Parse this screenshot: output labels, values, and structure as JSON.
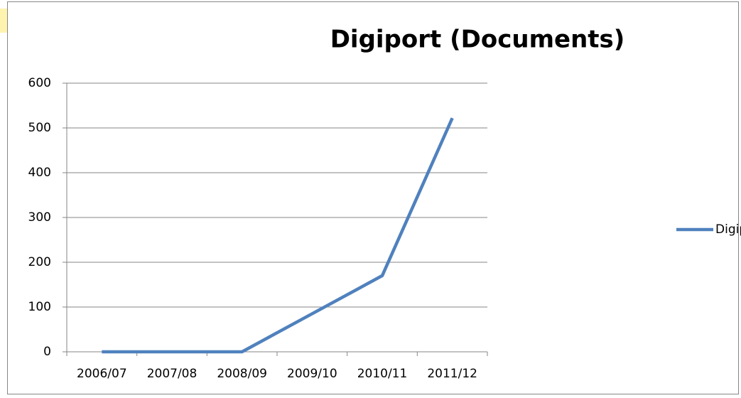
{
  "chart_data": {
    "type": "line",
    "title": "Digiport (Documents)",
    "categories": [
      "2006/07",
      "2007/08",
      "2008/09",
      "2009/10",
      "2010/11",
      "2011/12"
    ],
    "series": [
      {
        "name": "Digiport (Documents)",
        "color": "#4f81bd",
        "values": [
          0,
          0,
          0,
          85,
          170,
          522
        ]
      }
    ],
    "ylim": [
      0,
      600
    ],
    "yticks": [
      0,
      100,
      200,
      300,
      400,
      500,
      600
    ],
    "grid": true,
    "legend": "right"
  }
}
